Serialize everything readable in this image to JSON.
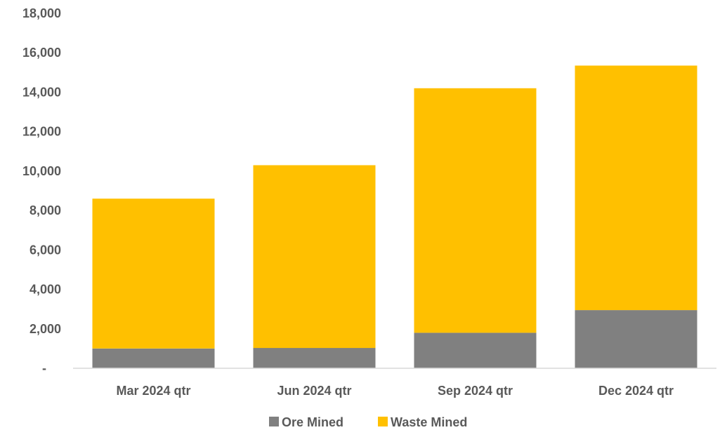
{
  "chart_data": {
    "type": "bar",
    "stacked": true,
    "categories": [
      "Mar 2024 qtr",
      "Jun 2024 qtr",
      "Sep 2024 qtr",
      "Dec 2024 qtr"
    ],
    "series": [
      {
        "name": "Ore Mined",
        "values": [
          1000,
          1030,
          1800,
          2950
        ],
        "color": "#808080"
      },
      {
        "name": "Waste Mined",
        "values": [
          7600,
          9270,
          12400,
          12400
        ],
        "color": "#FFC000"
      }
    ],
    "y_ticks": [
      "-",
      "2,000",
      "4,000",
      "6,000",
      "8,000",
      "10,000",
      "12,000",
      "14,000",
      "16,000",
      "18,000"
    ],
    "ylim": [
      0,
      18000
    ],
    "grid": false,
    "legend_position": "bottom"
  }
}
